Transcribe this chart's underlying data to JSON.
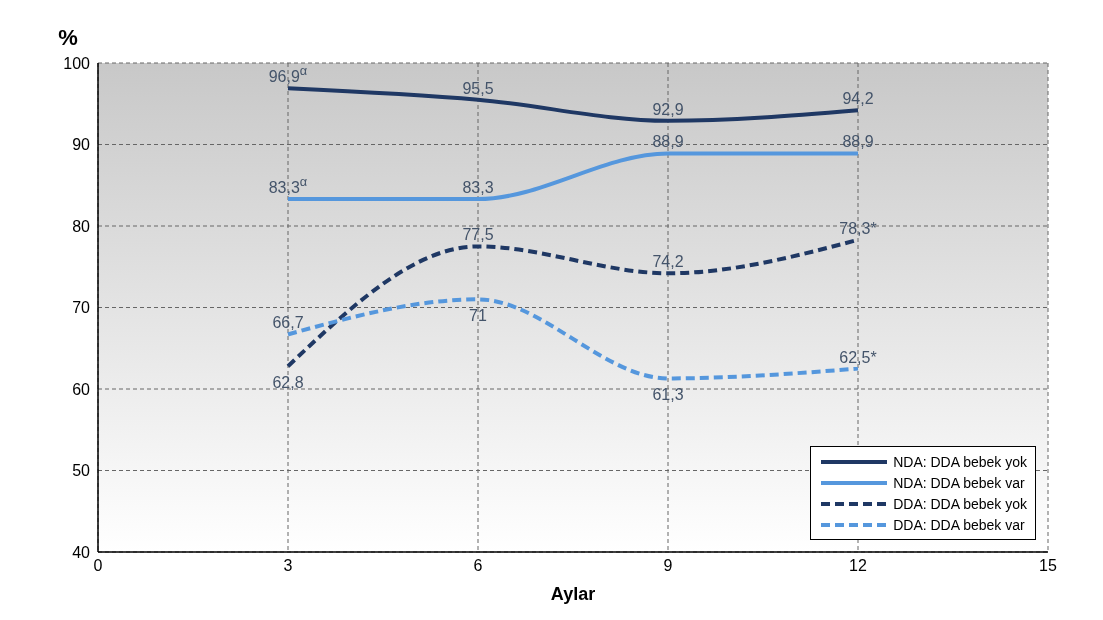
{
  "chart_data": {
    "type": "line",
    "ylabel": "%",
    "xlabel": "Aylar",
    "x": [
      3,
      6,
      9,
      12
    ],
    "xlim": [
      0,
      15
    ],
    "xticks": [
      0,
      3,
      6,
      9,
      12,
      15
    ],
    "ylim": [
      40,
      100
    ],
    "yticks": [
      40,
      50,
      60,
      70,
      80,
      90,
      100
    ],
    "grid": true,
    "legend": "bottom right",
    "marker": "none",
    "series": [
      {
        "name": "NDA: DDA bebek yok",
        "color": "#1f3864",
        "line_style": "solid",
        "values": [
          96.9,
          95.5,
          92.9,
          94.2
        ],
        "value_labels": [
          "96,9$^{α}$",
          "95,5",
          "92,9",
          "94,2"
        ]
      },
      {
        "name": "NDA: DDA bebek var",
        "color": "#5597dd",
        "line_style": "solid",
        "values": [
          83.3,
          83.3,
          88.9,
          88.9
        ],
        "value_labels": [
          "83,3$^{α}$",
          "83,3",
          "88,9",
          "88,9"
        ]
      },
      {
        "name": "DDA: DDA bebek yok",
        "color": "#1f3864",
        "line_style": "dashed",
        "values": [
          62.8,
          77.5,
          74.2,
          78.3
        ],
        "value_labels": [
          "62,8",
          "77,5",
          "74,2",
          "78,3*"
        ]
      },
      {
        "name": "DDA: DDA bebek var",
        "color": "#5597dd",
        "line_style": "dashed",
        "values": [
          66.7,
          71,
          61.3,
          62.5
        ],
        "value_labels": [
          "66,7",
          "71",
          "61,3",
          "62,5*"
        ]
      }
    ]
  }
}
